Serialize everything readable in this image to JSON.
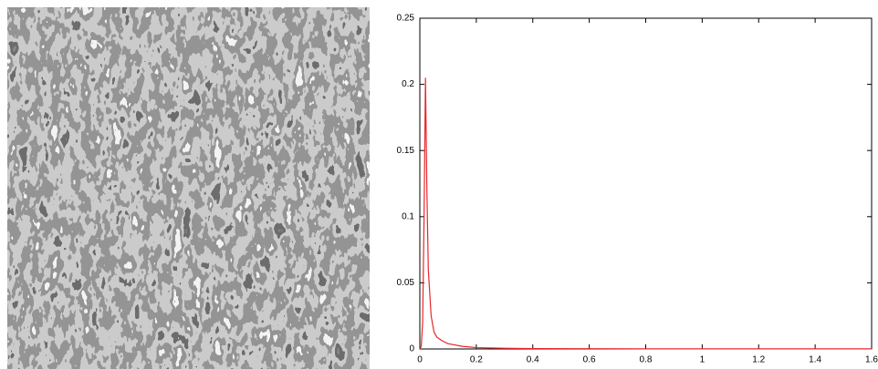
{
  "chart_data": {
    "type": "line",
    "x": [
      0,
      0.005,
      0.01,
      0.015,
      0.02,
      0.025,
      0.03,
      0.04,
      0.05,
      0.06,
      0.08,
      0.1,
      0.15,
      0.2,
      0.3,
      0.4,
      0.6,
      0.8,
      1.0,
      1.2,
      1.4,
      1.6
    ],
    "series": [
      {
        "color": "#e8262b",
        "values": [
          0,
          0.002,
          0.02,
          0.1,
          0.205,
          0.12,
          0.06,
          0.025,
          0.013,
          0.009,
          0.006,
          0.004,
          0.002,
          0.001,
          0.0005,
          0.0003,
          0.0002,
          0.0001,
          0.0001,
          0.0001,
          0.0001,
          0.0001
        ]
      }
    ],
    "xlim": [
      0,
      1.6
    ],
    "ylim": [
      0,
      0.25
    ],
    "xticks": [
      0,
      0.2,
      0.4,
      0.6,
      0.8,
      1,
      1.2,
      1.4,
      1.6
    ],
    "yticks": [
      0,
      0.05,
      0.1,
      0.15,
      0.2,
      0.25
    ]
  }
}
